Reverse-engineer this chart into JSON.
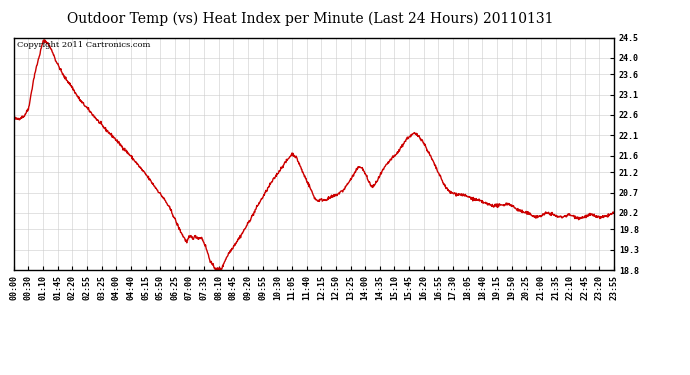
{
  "title": "Outdoor Temp (vs) Heat Index per Minute (Last 24 Hours) 20110131",
  "copyright": "Copyright 2011 Cartronics.com",
  "line_color": "#cc0000",
  "background_color": "#ffffff",
  "grid_color": "#cccccc",
  "ylim": [
    18.8,
    24.5
  ],
  "yticks": [
    18.8,
    19.3,
    19.8,
    20.2,
    20.7,
    21.2,
    21.6,
    22.1,
    22.6,
    23.1,
    23.6,
    24.0,
    24.5
  ],
  "xtick_labels": [
    "00:00",
    "00:30",
    "01:10",
    "01:45",
    "02:20",
    "02:55",
    "03:25",
    "04:00",
    "04:40",
    "05:15",
    "05:50",
    "06:25",
    "07:00",
    "07:35",
    "08:10",
    "08:45",
    "09:20",
    "09:55",
    "10:30",
    "11:05",
    "11:40",
    "12:15",
    "12:50",
    "13:25",
    "14:00",
    "14:35",
    "15:10",
    "15:45",
    "16:20",
    "16:55",
    "17:30",
    "18:05",
    "18:40",
    "19:15",
    "19:50",
    "20:25",
    "21:00",
    "21:35",
    "22:10",
    "22:45",
    "23:20",
    "23:55"
  ],
  "line_width": 1.0,
  "title_fontsize": 10,
  "copyright_fontsize": 6.0,
  "tick_fontsize": 6.0,
  "figsize": [
    6.9,
    3.75
  ],
  "dpi": 100
}
